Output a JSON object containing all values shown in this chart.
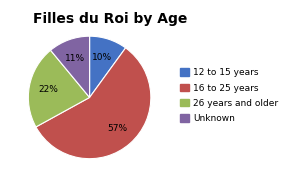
{
  "title": "Filles du Roi by Age",
  "labels": [
    "12 to 15 years",
    "16 to 25 years",
    "26 years and older",
    "Unknown"
  ],
  "values": [
    10,
    57,
    22,
    11
  ],
  "colors": [
    "#4472C4",
    "#C0504D",
    "#9BBB59",
    "#8064A2"
  ],
  "startangle": 90,
  "background_color": "#FFFFFF",
  "title_fontsize": 10,
  "legend_fontsize": 6.5,
  "pct_fontsize": 6.5
}
